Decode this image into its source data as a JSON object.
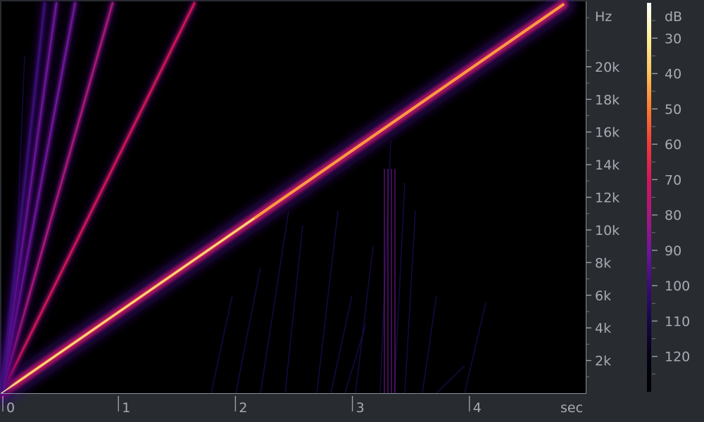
{
  "chart_data": {
    "type": "heatmap",
    "title": "",
    "x_axis": {
      "unit": "sec",
      "range": [
        0,
        5
      ],
      "ticks": [
        {
          "value": 0,
          "label": "0"
        },
        {
          "value": 1,
          "label": "1"
        },
        {
          "value": 2,
          "label": "2"
        },
        {
          "value": 3,
          "label": "3"
        },
        {
          "value": 4,
          "label": "4"
        }
      ]
    },
    "y_axis": {
      "unit": "Hz",
      "range": [
        0,
        24000
      ],
      "ticks": [
        {
          "value": 2000,
          "label": "2k"
        },
        {
          "value": 4000,
          "label": "4k"
        },
        {
          "value": 6000,
          "label": "6k"
        },
        {
          "value": 8000,
          "label": "8k"
        },
        {
          "value": 10000,
          "label": "10k"
        },
        {
          "value": 12000,
          "label": "12k"
        },
        {
          "value": 14000,
          "label": "14k"
        },
        {
          "value": 16000,
          "label": "16k"
        },
        {
          "value": 18000,
          "label": "18k"
        },
        {
          "value": 20000,
          "label": "20k"
        }
      ]
    },
    "colorbar": {
      "unit": "dB",
      "range": [
        20,
        130
      ],
      "ticks": [
        {
          "value": 30,
          "label": "30"
        },
        {
          "value": 40,
          "label": "40"
        },
        {
          "value": 50,
          "label": "50"
        },
        {
          "value": 60,
          "label": "60"
        },
        {
          "value": 70,
          "label": "70"
        },
        {
          "value": 80,
          "label": "80"
        },
        {
          "value": 90,
          "label": "90"
        },
        {
          "value": 100,
          "label": "100"
        },
        {
          "value": 110,
          "label": "110"
        },
        {
          "value": 120,
          "label": "120"
        }
      ],
      "gradient": [
        "#ffffff",
        "#fff09a",
        "#ffc25a",
        "#ff7a2e",
        "#f03a3a",
        "#d4145c",
        "#a8187e",
        "#70169a",
        "#3a0d78",
        "#150845",
        "#050212",
        "#000000"
      ]
    },
    "series": [
      {
        "x": [
          0,
          4.8
        ],
        "y": [
          0,
          23800
        ],
        "level_db": 30
      },
      {
        "x": [
          0,
          1.65
        ],
        "y": [
          0,
          23900
        ],
        "level_db": 65
      },
      {
        "x": [
          0,
          0.95
        ],
        "y": [
          0,
          23900
        ],
        "level_db": 75
      },
      {
        "x": [
          0,
          0.63
        ],
        "y": [
          0,
          23900
        ],
        "level_db": 85
      },
      {
        "x": [
          0,
          0.47
        ],
        "y": [
          0,
          23900
        ],
        "level_db": 95
      },
      {
        "x": [
          0,
          0.37
        ],
        "y": [
          0,
          23900
        ],
        "level_db": 102
      }
    ],
    "grid": false,
    "background_color": "#000000"
  }
}
